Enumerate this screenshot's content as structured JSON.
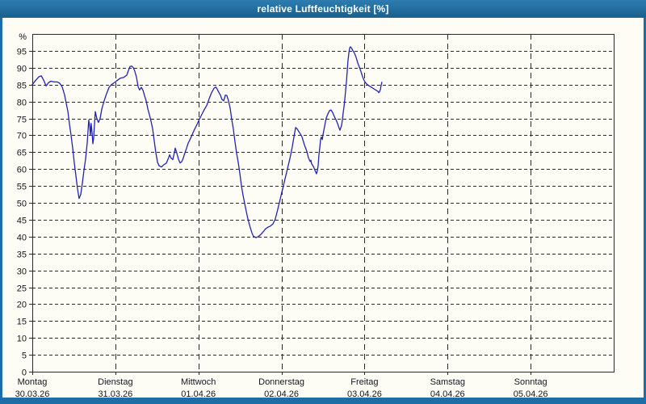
{
  "window": {
    "title": "relative Luftfeuchtigkeit [%]"
  },
  "colors": {
    "titlebar_bg": "#1d6da6",
    "titlebar_text": "#ffffff",
    "window_border": "#1d6da6",
    "content_bg": "#fdfdf6",
    "grid": "#2a2a2a",
    "axis": "#2a2a2a",
    "label_text": "#14161c",
    "series_line": "#2222bb"
  },
  "chart_data": {
    "type": "line",
    "title": "relative Luftfeuchtigkeit [%]",
    "y_unit_label": "%",
    "ylim": [
      0,
      100
    ],
    "y_ticks": [
      0,
      5,
      10,
      15,
      20,
      25,
      30,
      35,
      40,
      45,
      50,
      55,
      60,
      65,
      70,
      75,
      80,
      85,
      90,
      95
    ],
    "grid": true,
    "legend_position": "none",
    "x_total_days": 7,
    "x_days": [
      {
        "name": "Montag",
        "date": "30.03.26"
      },
      {
        "name": "Dienstag",
        "date": "31.03.26"
      },
      {
        "name": "Mittwoch",
        "date": "01.04.26"
      },
      {
        "name": "Donnerstag",
        "date": "02.04.26"
      },
      {
        "name": "Freitag",
        "date": "03.04.26"
      },
      {
        "name": "Samstag",
        "date": "04.04.26"
      },
      {
        "name": "Sonntag",
        "date": "05.04.26"
      }
    ],
    "series": [
      {
        "name": "relative Luftfeuchtigkeit",
        "color": "#2222bb",
        "points_hours_value": [
          [
            0,
            85
          ],
          [
            0.9,
            86.2
          ],
          [
            1.9,
            87.3
          ],
          [
            2.6,
            87.6
          ],
          [
            3.3,
            86.3
          ],
          [
            4,
            84.6
          ],
          [
            4.7,
            85.6
          ],
          [
            5.4,
            86
          ],
          [
            6.3,
            85.8
          ],
          [
            7.2,
            85.8
          ],
          [
            7.9,
            85.4
          ],
          [
            8.6,
            84.4
          ],
          [
            9.3,
            82
          ],
          [
            9.8,
            79.5
          ],
          [
            10.3,
            77
          ],
          [
            10.7,
            73.5
          ],
          [
            11.2,
            70
          ],
          [
            11.7,
            66
          ],
          [
            12.1,
            62
          ],
          [
            12.6,
            58
          ],
          [
            13.1,
            54
          ],
          [
            13.5,
            51.3
          ],
          [
            14,
            52.5
          ],
          [
            14.5,
            56
          ],
          [
            14.9,
            59.5
          ],
          [
            15.4,
            63
          ],
          [
            15.9,
            68
          ],
          [
            16.3,
            74.5
          ],
          [
            16.6,
            72.5
          ],
          [
            16.8,
            70
          ],
          [
            17,
            73.5
          ],
          [
            17.3,
            70.5
          ],
          [
            17.5,
            67.5
          ],
          [
            17.7,
            69
          ],
          [
            18.2,
            77
          ],
          [
            18.7,
            74.8
          ],
          [
            19.1,
            73.8
          ],
          [
            19.6,
            75
          ],
          [
            20.1,
            77.8
          ],
          [
            20.8,
            80.3
          ],
          [
            21.5,
            82.4
          ],
          [
            22.2,
            84.2
          ],
          [
            22.9,
            85
          ],
          [
            23.6,
            85.5
          ],
          [
            24.5,
            86.2
          ],
          [
            25.4,
            86.9
          ],
          [
            26.4,
            87.1
          ],
          [
            27.3,
            87.8
          ],
          [
            27.8,
            89.2
          ],
          [
            28.2,
            90.3
          ],
          [
            28.7,
            90.5
          ],
          [
            29.2,
            90
          ],
          [
            29.6,
            89
          ],
          [
            30.1,
            87.2
          ],
          [
            30.6,
            84.3
          ],
          [
            31,
            83.4
          ],
          [
            31.5,
            84.2
          ],
          [
            32,
            83.3
          ],
          [
            32.4,
            81.8
          ],
          [
            32.9,
            80.2
          ],
          [
            33.4,
            77.8
          ],
          [
            33.8,
            76.2
          ],
          [
            34.3,
            74.2
          ],
          [
            34.8,
            71.8
          ],
          [
            35.2,
            68.5
          ],
          [
            35.7,
            64.8
          ],
          [
            36.2,
            62
          ],
          [
            36.6,
            61
          ],
          [
            37.3,
            60.6
          ],
          [
            38,
            61.3
          ],
          [
            38.7,
            61.7
          ],
          [
            39.4,
            63.4
          ],
          [
            39.7,
            64.2
          ],
          [
            40.1,
            63.2
          ],
          [
            40.6,
            62.8
          ],
          [
            41.1,
            65
          ],
          [
            41.3,
            66.2
          ],
          [
            41.8,
            64.6
          ],
          [
            42.2,
            63
          ],
          [
            42.7,
            61.8
          ],
          [
            43.2,
            62.2
          ],
          [
            43.6,
            63.2
          ],
          [
            44.1,
            64.8
          ],
          [
            44.6,
            66.2
          ],
          [
            45,
            67.6
          ],
          [
            45.5,
            68.6
          ],
          [
            46.2,
            70.2
          ],
          [
            46.9,
            71.8
          ],
          [
            47.6,
            73.2
          ],
          [
            48.3,
            74.8
          ],
          [
            49,
            76.2
          ],
          [
            49.7,
            77.6
          ],
          [
            50.4,
            78.8
          ],
          [
            51.1,
            80.8
          ],
          [
            51.8,
            82.6
          ],
          [
            52.5,
            83.9
          ],
          [
            53,
            84.3
          ],
          [
            53.4,
            83.7
          ],
          [
            53.9,
            82.7
          ],
          [
            54.4,
            81.8
          ],
          [
            54.8,
            80.6
          ],
          [
            55.3,
            80.2
          ],
          [
            55.8,
            81.9
          ],
          [
            56.2,
            81.8
          ],
          [
            56.7,
            80.2
          ],
          [
            57.2,
            77.9
          ],
          [
            57.6,
            74.8
          ],
          [
            58.1,
            71.8
          ],
          [
            58.6,
            67.9
          ],
          [
            59,
            64.8
          ],
          [
            59.5,
            62
          ],
          [
            60,
            58.6
          ],
          [
            60.4,
            55.2
          ],
          [
            60.9,
            52.2
          ],
          [
            61.6,
            48.6
          ],
          [
            62.3,
            45.2
          ],
          [
            63,
            42.6
          ],
          [
            63.5,
            41
          ],
          [
            63.9,
            40.1
          ],
          [
            64.6,
            39.7
          ],
          [
            65.3,
            40
          ],
          [
            66,
            40.6
          ],
          [
            66.7,
            41.4
          ],
          [
            67.4,
            42.3
          ],
          [
            68.1,
            42.8
          ],
          [
            68.8,
            43.1
          ],
          [
            69.5,
            43.7
          ],
          [
            70.2,
            45.2
          ],
          [
            70.9,
            48
          ],
          [
            71.6,
            51
          ],
          [
            72.3,
            54
          ],
          [
            73,
            57
          ],
          [
            73.7,
            60
          ],
          [
            74.4,
            63
          ],
          [
            75.1,
            66.5
          ],
          [
            75.6,
            69.5
          ],
          [
            76.1,
            72.3
          ],
          [
            76.5,
            71.9
          ],
          [
            77.2,
            70.8
          ],
          [
            77.9,
            69.6
          ],
          [
            78.6,
            67.2
          ],
          [
            79.3,
            65.3
          ],
          [
            79.8,
            63.3
          ],
          [
            80.3,
            62.2
          ],
          [
            80.5,
            62.6
          ],
          [
            80.7,
            61.6
          ],
          [
            81.2,
            60.8
          ],
          [
            81.7,
            59.6
          ],
          [
            82.1,
            58.6
          ],
          [
            82.4,
            59.6
          ],
          [
            82.6,
            61
          ],
          [
            82.8,
            64
          ],
          [
            83.1,
            66.5
          ],
          [
            83.3,
            68.8
          ],
          [
            83.5,
            69.5
          ],
          [
            83.8,
            68.7
          ],
          [
            84,
            70.2
          ],
          [
            84.5,
            72.8
          ],
          [
            84.9,
            75
          ],
          [
            85.4,
            76.3
          ],
          [
            85.9,
            77.3
          ],
          [
            86.3,
            77.5
          ],
          [
            86.8,
            76.7
          ],
          [
            87.3,
            75.5
          ],
          [
            87.7,
            74.7
          ],
          [
            88.2,
            73.5
          ],
          [
            88.7,
            72
          ],
          [
            88.9,
            71.5
          ],
          [
            89.4,
            73
          ],
          [
            89.6,
            74.6
          ],
          [
            89.8,
            76.5
          ],
          [
            90.1,
            78.6
          ],
          [
            90.3,
            80.6
          ],
          [
            90.5,
            83
          ],
          [
            90.8,
            86
          ],
          [
            91,
            89
          ],
          [
            91.2,
            92
          ],
          [
            91.5,
            94.5
          ],
          [
            91.7,
            95.8
          ],
          [
            91.9,
            96.2
          ],
          [
            92.2,
            95.9
          ],
          [
            92.6,
            95.1
          ],
          [
            93.1,
            94.3
          ],
          [
            93.6,
            93
          ],
          [
            94,
            91.5
          ],
          [
            94.5,
            90.2
          ],
          [
            95,
            88.8
          ],
          [
            95.4,
            87.4
          ],
          [
            95.9,
            86.2
          ],
          [
            96.4,
            85.4
          ],
          [
            96.8,
            85
          ],
          [
            97.5,
            84.5
          ],
          [
            98.2,
            84.1
          ],
          [
            98.9,
            83.6
          ],
          [
            99.4,
            83.3
          ],
          [
            99.9,
            83
          ],
          [
            100.1,
            82.6
          ],
          [
            100.3,
            82.8
          ],
          [
            100.6,
            83.6
          ],
          [
            100.8,
            84.8
          ],
          [
            101,
            85.7
          ]
        ]
      }
    ]
  }
}
